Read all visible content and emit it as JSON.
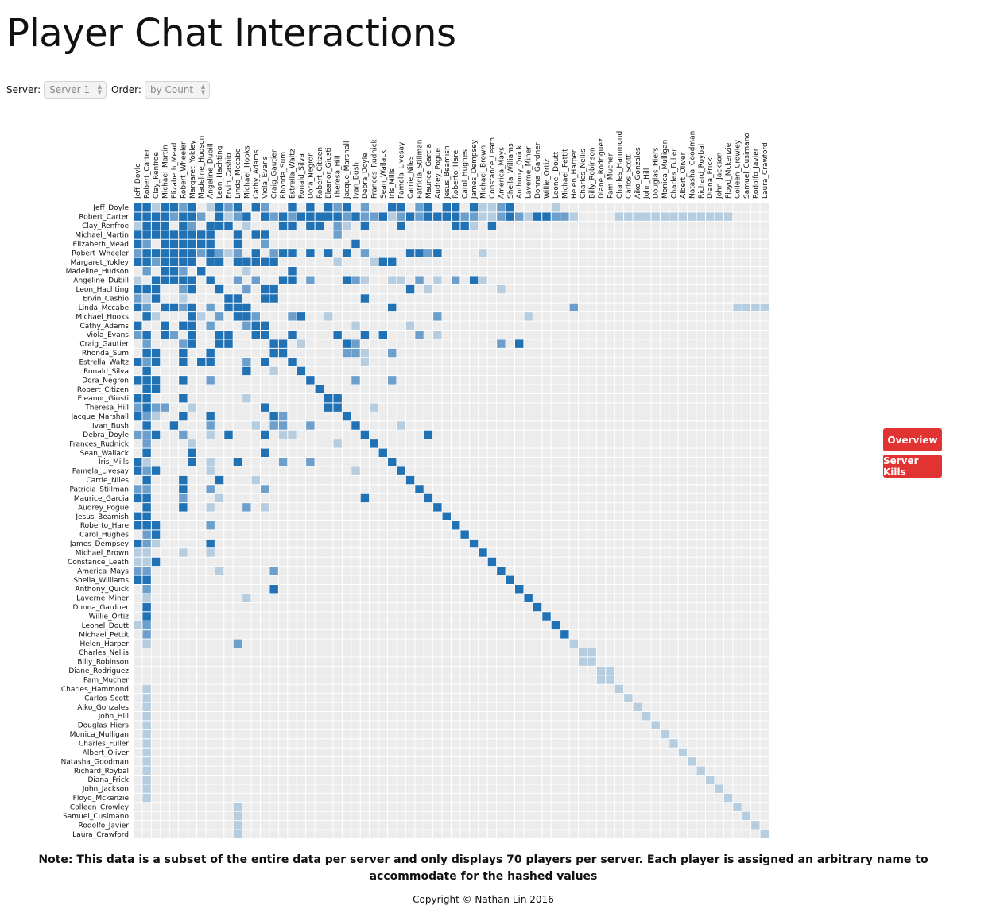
{
  "title": "Player Chat Interactions",
  "controls": {
    "server_label": "Server:",
    "server_value": "Server 1",
    "order_label": "Order:",
    "order_value": "by Count"
  },
  "buttons": {
    "overview": "Overview",
    "server_kills": "Server Kills"
  },
  "note": "Note: This data is a subset of the entire data per server and only displays 70 players per server. Each player is assigned an arbitrary name to accommodate for the hashed values",
  "copyright": "Copyright © Nathan Lin 2016",
  "colors": {
    "cell_empty": "#ececec",
    "strong": "#2171b5",
    "medium": "#6d9fcc",
    "light": "#b6cde0",
    "button": "#e23333"
  },
  "chart_data": {
    "type": "heatmap",
    "title": "Player Chat Interactions",
    "levels": [
      "none",
      "light",
      "medium",
      "strong"
    ],
    "players": [
      "Jeff_Doyle",
      "Robert_Carter",
      "Clay_Renfroe",
      "Michael_Martin",
      "Elizabeth_Mead",
      "Robert_Wheeler",
      "Margaret_Yokley",
      "Madeline_Hudson",
      "Angeline_Dubill",
      "Leon_Hachting",
      "Ervin_Cashio",
      "Linda_Mccabe",
      "Michael_Hooks",
      "Cathy_Adams",
      "Viola_Evans",
      "Craig_Gautier",
      "Rhonda_Sum",
      "Estrella_Waltz",
      "Ronald_Silva",
      "Dora_Negron",
      "Robert_Citizen",
      "Eleanor_Giusti",
      "Theresa_Hill",
      "Jacque_Marshall",
      "Ivan_Bush",
      "Debra_Doyle",
      "Frances_Rudnick",
      "Sean_Wallack",
      "Iris_Mills",
      "Pamela_Livesay",
      "Carrie_Niles",
      "Patricia_Stillman",
      "Maurice_Garcia",
      "Audrey_Pogue",
      "Jesus_Beamish",
      "Roberto_Hare",
      "Carol_Hughes",
      "James_Dempsey",
      "Michael_Brown",
      "Constance_Leath",
      "America_Mays",
      "Sheila_Williams",
      "Anthony_Quick",
      "Laverne_Miner",
      "Donna_Gardner",
      "Willie_Ortiz",
      "Leonel_Doutt",
      "Michael_Pettit",
      "Helen_Harper",
      "Charles_Nellis",
      "Billy_Robinson",
      "Diane_Rodriguez",
      "Pam_Mucher",
      "Charles_Hammond",
      "Carlos_Scott",
      "Aiko_Gonzales",
      "John_Hill",
      "Douglas_Hiers",
      "Monica_Mulligan",
      "Charles_Fuller",
      "Albert_Oliver",
      "Natasha_Goodman",
      "Richard_Roybal",
      "Diana_Frick",
      "John_Jackson",
      "Floyd_Mckenzie",
      "Colleen_Crowley",
      "Samuel_Cusimano",
      "Rodolfo_Javier",
      "Laura_Crawford"
    ],
    "links": [
      [
        0,
        0,
        3
      ],
      [
        1,
        1,
        3
      ],
      [
        2,
        2,
        3
      ],
      [
        3,
        3,
        3
      ],
      [
        4,
        4,
        3
      ],
      [
        5,
        5,
        3
      ],
      [
        6,
        6,
        3
      ],
      [
        7,
        7,
        3
      ],
      [
        8,
        8,
        3
      ],
      [
        9,
        9,
        3
      ],
      [
        10,
        10,
        3
      ],
      [
        11,
        11,
        3
      ],
      [
        12,
        12,
        3
      ],
      [
        13,
        13,
        3
      ],
      [
        14,
        14,
        3
      ],
      [
        15,
        15,
        3
      ],
      [
        16,
        16,
        3
      ],
      [
        17,
        17,
        3
      ],
      [
        18,
        18,
        3
      ],
      [
        19,
        19,
        3
      ],
      [
        20,
        20,
        3
      ],
      [
        21,
        21,
        3
      ],
      [
        22,
        22,
        3
      ],
      [
        23,
        23,
        3
      ],
      [
        24,
        24,
        3
      ],
      [
        25,
        25,
        3
      ],
      [
        26,
        26,
        3
      ],
      [
        27,
        27,
        3
      ],
      [
        28,
        28,
        3
      ],
      [
        29,
        29,
        3
      ],
      [
        30,
        30,
        3
      ],
      [
        31,
        31,
        3
      ],
      [
        32,
        32,
        3
      ],
      [
        33,
        33,
        3
      ],
      [
        34,
        34,
        3
      ],
      [
        35,
        35,
        3
      ],
      [
        36,
        36,
        3
      ],
      [
        37,
        37,
        3
      ],
      [
        38,
        38,
        3
      ],
      [
        39,
        39,
        3
      ],
      [
        40,
        40,
        3
      ],
      [
        41,
        41,
        3
      ],
      [
        42,
        42,
        3
      ],
      [
        43,
        43,
        3
      ],
      [
        44,
        44,
        3
      ],
      [
        45,
        45,
        3
      ],
      [
        46,
        46,
        3
      ],
      [
        47,
        47,
        3
      ],
      [
        48,
        48,
        1
      ],
      [
        49,
        49,
        1
      ],
      [
        50,
        50,
        1
      ],
      [
        51,
        51,
        1
      ],
      [
        52,
        52,
        1
      ],
      [
        53,
        53,
        1
      ],
      [
        54,
        54,
        1
      ],
      [
        55,
        55,
        1
      ],
      [
        56,
        56,
        1
      ],
      [
        57,
        57,
        1
      ],
      [
        58,
        58,
        1
      ],
      [
        59,
        59,
        1
      ],
      [
        60,
        60,
        1
      ],
      [
        61,
        61,
        1
      ],
      [
        62,
        62,
        1
      ],
      [
        63,
        63,
        1
      ],
      [
        64,
        64,
        1
      ],
      [
        65,
        65,
        1
      ],
      [
        66,
        66,
        1
      ],
      [
        67,
        67,
        1
      ],
      [
        68,
        68,
        1
      ],
      [
        69,
        69,
        1
      ],
      [
        49,
        50,
        1
      ],
      [
        51,
        52,
        1
      ],
      [
        0,
        1,
        3
      ],
      [
        0,
        2,
        1
      ],
      [
        0,
        3,
        3
      ],
      [
        0,
        4,
        3
      ],
      [
        0,
        5,
        2
      ],
      [
        0,
        6,
        3
      ],
      [
        0,
        8,
        1
      ],
      [
        0,
        9,
        3
      ],
      [
        0,
        10,
        2
      ],
      [
        0,
        11,
        3
      ],
      [
        0,
        13,
        3
      ],
      [
        0,
        14,
        2
      ],
      [
        0,
        17,
        3
      ],
      [
        0,
        19,
        3
      ],
      [
        0,
        21,
        3
      ],
      [
        0,
        22,
        2
      ],
      [
        0,
        23,
        3
      ],
      [
        0,
        25,
        2
      ],
      [
        0,
        28,
        3
      ],
      [
        0,
        29,
        3
      ],
      [
        0,
        31,
        2
      ],
      [
        0,
        32,
        3
      ],
      [
        0,
        34,
        3
      ],
      [
        0,
        35,
        3
      ],
      [
        0,
        37,
        3
      ],
      [
        0,
        38,
        1
      ],
      [
        0,
        39,
        1
      ],
      [
        0,
        40,
        2
      ],
      [
        0,
        41,
        3
      ],
      [
        0,
        46,
        1
      ],
      [
        1,
        2,
        3
      ],
      [
        1,
        3,
        3
      ],
      [
        1,
        4,
        2
      ],
      [
        1,
        5,
        3
      ],
      [
        1,
        6,
        3
      ],
      [
        1,
        7,
        2
      ],
      [
        1,
        9,
        3
      ],
      [
        1,
        10,
        1
      ],
      [
        1,
        11,
        2
      ],
      [
        1,
        12,
        3
      ],
      [
        1,
        14,
        3
      ],
      [
        1,
        15,
        2
      ],
      [
        1,
        16,
        3
      ],
      [
        1,
        17,
        2
      ],
      [
        1,
        18,
        3
      ],
      [
        1,
        19,
        3
      ],
      [
        1,
        20,
        3
      ],
      [
        1,
        21,
        3
      ],
      [
        1,
        22,
        3
      ],
      [
        1,
        23,
        2
      ],
      [
        1,
        24,
        3
      ],
      [
        1,
        25,
        2
      ],
      [
        1,
        26,
        2
      ],
      [
        1,
        27,
        3
      ],
      [
        1,
        28,
        1
      ],
      [
        1,
        29,
        2
      ],
      [
        1,
        30,
        3
      ],
      [
        1,
        31,
        2
      ],
      [
        1,
        32,
        3
      ],
      [
        1,
        33,
        3
      ],
      [
        1,
        34,
        3
      ],
      [
        1,
        35,
        3
      ],
      [
        1,
        36,
        2
      ],
      [
        1,
        37,
        2
      ],
      [
        1,
        38,
        1
      ],
      [
        1,
        39,
        1
      ],
      [
        1,
        40,
        2
      ],
      [
        1,
        41,
        3
      ],
      [
        1,
        42,
        2
      ],
      [
        1,
        43,
        1
      ],
      [
        1,
        44,
        3
      ],
      [
        1,
        45,
        3
      ],
      [
        1,
        46,
        2
      ],
      [
        1,
        47,
        2
      ],
      [
        1,
        48,
        1
      ],
      [
        1,
        53,
        1
      ],
      [
        1,
        54,
        1
      ],
      [
        1,
        55,
        1
      ],
      [
        1,
        56,
        1
      ],
      [
        1,
        57,
        1
      ],
      [
        1,
        58,
        1
      ],
      [
        1,
        59,
        1
      ],
      [
        1,
        60,
        1
      ],
      [
        1,
        61,
        1
      ],
      [
        1,
        62,
        1
      ],
      [
        1,
        63,
        1
      ],
      [
        1,
        64,
        1
      ],
      [
        1,
        65,
        1
      ],
      [
        2,
        3,
        3
      ],
      [
        2,
        5,
        3
      ],
      [
        2,
        6,
        2
      ],
      [
        2,
        8,
        3
      ],
      [
        2,
        9,
        3
      ],
      [
        2,
        10,
        3
      ],
      [
        2,
        12,
        1
      ],
      [
        2,
        16,
        3
      ],
      [
        2,
        17,
        3
      ],
      [
        2,
        19,
        3
      ],
      [
        2,
        20,
        3
      ],
      [
        2,
        22,
        2
      ],
      [
        2,
        23,
        1
      ],
      [
        2,
        25,
        3
      ],
      [
        2,
        29,
        3
      ],
      [
        2,
        35,
        3
      ],
      [
        2,
        36,
        3
      ],
      [
        2,
        37,
        1
      ],
      [
        2,
        39,
        3
      ],
      [
        3,
        4,
        3
      ],
      [
        3,
        5,
        3
      ],
      [
        3,
        6,
        3
      ],
      [
        3,
        7,
        3
      ],
      [
        3,
        8,
        3
      ],
      [
        3,
        11,
        3
      ],
      [
        3,
        13,
        3
      ],
      [
        3,
        14,
        3
      ],
      [
        3,
        22,
        2
      ],
      [
        4,
        5,
        3
      ],
      [
        4,
        6,
        3
      ],
      [
        4,
        7,
        3
      ],
      [
        4,
        8,
        3
      ],
      [
        4,
        11,
        3
      ],
      [
        4,
        14,
        2
      ],
      [
        4,
        24,
        3
      ],
      [
        5,
        6,
        3
      ],
      [
        5,
        7,
        2
      ],
      [
        5,
        8,
        3
      ],
      [
        5,
        9,
        2
      ],
      [
        5,
        10,
        1
      ],
      [
        5,
        11,
        2
      ],
      [
        5,
        13,
        3
      ],
      [
        5,
        15,
        2
      ],
      [
        5,
        16,
        3
      ],
      [
        5,
        17,
        3
      ],
      [
        5,
        19,
        3
      ],
      [
        5,
        21,
        3
      ],
      [
        5,
        23,
        3
      ],
      [
        5,
        25,
        2
      ],
      [
        5,
        30,
        3
      ],
      [
        5,
        31,
        3
      ],
      [
        5,
        32,
        2
      ],
      [
        5,
        33,
        3
      ],
      [
        5,
        38,
        1
      ],
      [
        6,
        8,
        3
      ],
      [
        6,
        9,
        3
      ],
      [
        6,
        11,
        3
      ],
      [
        6,
        12,
        3
      ],
      [
        6,
        13,
        3
      ],
      [
        6,
        14,
        3
      ],
      [
        6,
        15,
        3
      ],
      [
        6,
        22,
        1
      ],
      [
        6,
        26,
        1
      ],
      [
        6,
        27,
        3
      ],
      [
        6,
        28,
        3
      ],
      [
        7,
        12,
        1
      ],
      [
        7,
        17,
        3
      ],
      [
        8,
        11,
        2
      ],
      [
        8,
        13,
        2
      ],
      [
        8,
        16,
        3
      ],
      [
        8,
        17,
        3
      ],
      [
        8,
        19,
        2
      ],
      [
        8,
        23,
        3
      ],
      [
        8,
        24,
        2
      ],
      [
        8,
        25,
        1
      ],
      [
        8,
        28,
        1
      ],
      [
        8,
        29,
        1
      ],
      [
        8,
        31,
        2
      ],
      [
        8,
        33,
        1
      ],
      [
        8,
        35,
        2
      ],
      [
        8,
        37,
        3
      ],
      [
        8,
        38,
        1
      ],
      [
        9,
        12,
        2
      ],
      [
        9,
        14,
        3
      ],
      [
        9,
        15,
        3
      ],
      [
        9,
        30,
        3
      ],
      [
        9,
        32,
        1
      ],
      [
        9,
        40,
        1
      ],
      [
        10,
        11,
        3
      ],
      [
        10,
        14,
        3
      ],
      [
        10,
        15,
        3
      ],
      [
        10,
        25,
        3
      ],
      [
        11,
        12,
        3
      ],
      [
        11,
        28,
        3
      ],
      [
        11,
        48,
        2
      ],
      [
        11,
        66,
        1
      ],
      [
        11,
        67,
        1
      ],
      [
        11,
        68,
        1
      ],
      [
        11,
        69,
        1
      ],
      [
        12,
        13,
        2
      ],
      [
        12,
        17,
        2
      ],
      [
        12,
        18,
        3
      ],
      [
        12,
        21,
        1
      ],
      [
        12,
        33,
        2
      ],
      [
        12,
        43,
        1
      ],
      [
        13,
        14,
        3
      ],
      [
        13,
        24,
        1
      ],
      [
        13,
        30,
        1
      ],
      [
        14,
        17,
        3
      ],
      [
        14,
        22,
        3
      ],
      [
        14,
        25,
        3
      ],
      [
        14,
        27,
        3
      ],
      [
        14,
        31,
        2
      ],
      [
        14,
        33,
        1
      ],
      [
        15,
        16,
        3
      ],
      [
        15,
        18,
        1
      ],
      [
        15,
        23,
        3
      ],
      [
        15,
        24,
        2
      ],
      [
        15,
        40,
        2
      ],
      [
        15,
        42,
        3
      ],
      [
        16,
        23,
        2
      ],
      [
        16,
        24,
        2
      ],
      [
        16,
        25,
        1
      ],
      [
        16,
        28,
        2
      ],
      [
        17,
        25,
        1
      ],
      [
        19,
        24,
        2
      ],
      [
        19,
        28,
        2
      ],
      [
        21,
        22,
        3
      ],
      [
        22,
        26,
        1
      ],
      [
        24,
        29,
        1
      ],
      [
        25,
        32,
        3
      ]
    ]
  }
}
